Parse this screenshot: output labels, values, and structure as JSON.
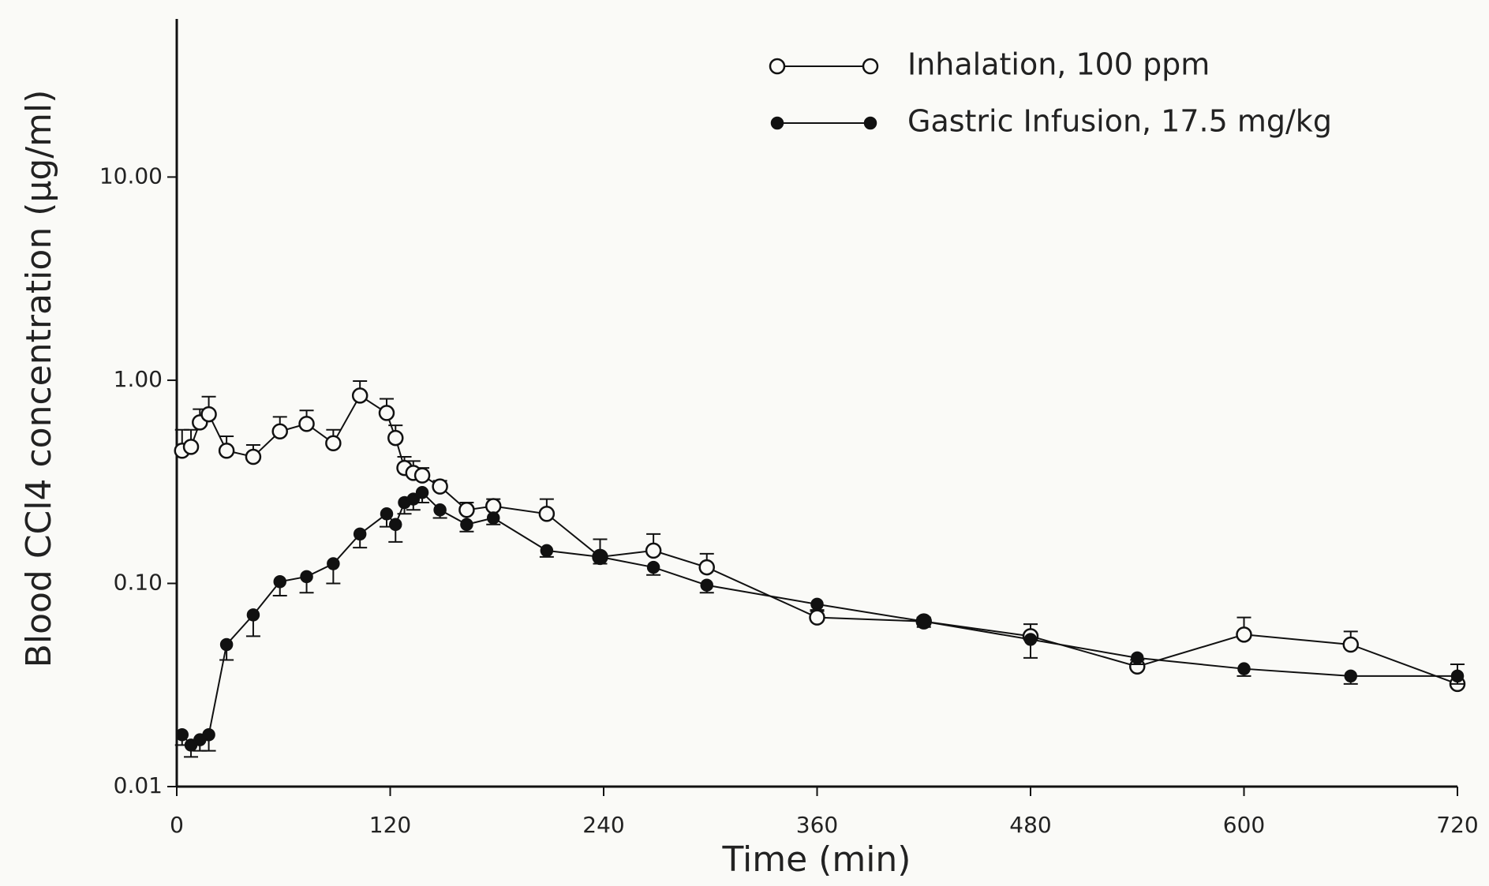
{
  "chart_data": {
    "type": "line",
    "ylabel": "Blood CCl4 concentration (μg/ml)",
    "xlabel": "Time (min)",
    "log_y": true,
    "xlim": [
      0,
      720
    ],
    "xticks": [
      0,
      120,
      240,
      360,
      480,
      600,
      720
    ],
    "ylim": [
      0.01,
      60
    ],
    "yticks": [
      {
        "value": 0.01,
        "label": "0.01"
      },
      {
        "value": 0.1,
        "label": "0.10"
      },
      {
        "value": 1,
        "label": "1.00"
      },
      {
        "value": 10,
        "label": "10.00"
      }
    ],
    "legend": "upper right",
    "series": [
      {
        "name": "Inhalation, 100 ppm",
        "color": "#111111",
        "marker": "open",
        "x": [
          3,
          8,
          13,
          18,
          28,
          43,
          58,
          73,
          88,
          103,
          118,
          123,
          128,
          133,
          138,
          148,
          163,
          178,
          208,
          238,
          268,
          298,
          360,
          420,
          480,
          540,
          600,
          660,
          720
        ],
        "values": [
          0.45,
          0.47,
          0.62,
          0.68,
          0.45,
          0.42,
          0.56,
          0.61,
          0.49,
          0.84,
          0.69,
          0.52,
          0.37,
          0.35,
          0.34,
          0.3,
          0.23,
          0.24,
          0.22,
          0.135,
          0.145,
          0.12,
          0.068,
          0.065,
          0.055,
          0.039,
          0.056,
          0.05,
          0.032
        ],
        "errors": [
          0.12,
          0.1,
          0.1,
          0.15,
          0.08,
          0.06,
          0.1,
          0.1,
          0.08,
          0.15,
          0.12,
          0.08,
          0.05,
          0.05,
          0.03,
          0.02,
          0.02,
          0.02,
          0.04,
          0.03,
          0.03,
          0.02,
          0.005,
          0.003,
          0.008,
          0.003,
          0.012,
          0.008,
          0.008
        ]
      },
      {
        "name": "Gastric Infusion, 17.5 mg/kg",
        "color": "#111111",
        "marker": "filled",
        "x": [
          3,
          8,
          13,
          18,
          28,
          43,
          58,
          73,
          88,
          103,
          118,
          123,
          128,
          133,
          138,
          148,
          163,
          178,
          208,
          238,
          268,
          298,
          360,
          420,
          480,
          540,
          600,
          660,
          720
        ],
        "values": [
          0.018,
          0.016,
          0.017,
          0.018,
          0.05,
          0.07,
          0.102,
          0.108,
          0.125,
          0.175,
          0.22,
          0.195,
          0.25,
          0.26,
          0.28,
          0.23,
          0.195,
          0.21,
          0.145,
          0.135,
          0.12,
          0.098,
          0.079,
          0.065,
          0.053,
          0.043,
          0.038,
          0.035,
          0.035
        ],
        "errors": [
          0.002,
          0.002,
          0.002,
          0.003,
          0.008,
          0.015,
          0.015,
          0.018,
          0.025,
          0.025,
          0.03,
          0.035,
          0.03,
          0.03,
          0.03,
          0.02,
          0.015,
          0.015,
          0.01,
          0.01,
          0.01,
          0.008,
          0.005,
          0.004,
          0.01,
          0.003,
          0.003,
          0.003,
          0.003
        ]
      }
    ]
  }
}
